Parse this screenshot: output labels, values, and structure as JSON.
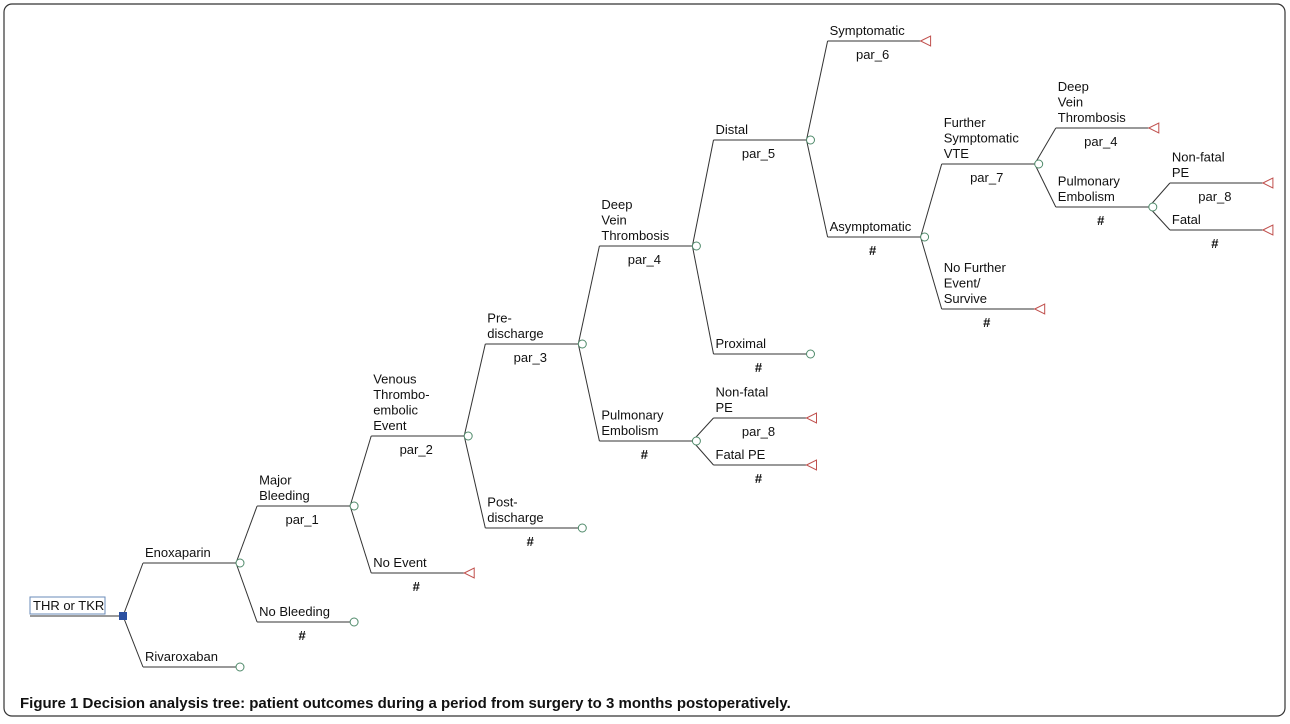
{
  "tree": {
    "label": "THR or TKR",
    "branches": [
      {
        "label": [
          "Enoxaparin"
        ],
        "node": "chance",
        "branches": [
          {
            "label": [
              "Major",
              "Bleeding"
            ],
            "probability": "par_1",
            "node": "chance",
            "branches": [
              {
                "label": [
                  "Venous",
                  "Thrombo-",
                  "embolic",
                  "Event"
                ],
                "probability": "par_2",
                "node": "chance",
                "branches": [
                  {
                    "label": [
                      "Pre-",
                      "discharge"
                    ],
                    "probability": "par_3",
                    "node": "chance",
                    "branches": [
                      {
                        "label": [
                          "Deep",
                          "Vein",
                          "Thrombosis"
                        ],
                        "probability": "par_4",
                        "node": "chance",
                        "branches": [
                          {
                            "label": [
                              "Distal"
                            ],
                            "probability": "par_5",
                            "node": "chance",
                            "branches": [
                              {
                                "label": [
                                  "Symptomatic"
                                ],
                                "probability": "par_6",
                                "node": "terminal"
                              },
                              {
                                "label": [
                                  "Asymptomatic"
                                ],
                                "probability": "#",
                                "node": "chance",
                                "branches": [
                                  {
                                    "label": [
                                      "Further",
                                      "Symptomatic",
                                      "VTE"
                                    ],
                                    "probability": "par_7",
                                    "node": "chance",
                                    "branches": [
                                      {
                                        "label": [
                                          "Deep",
                                          "Vein",
                                          "Thrombosis"
                                        ],
                                        "probability": "par_4",
                                        "node": "terminal"
                                      },
                                      {
                                        "label": [
                                          "Pulmonary",
                                          "Embolism"
                                        ],
                                        "probability": "#",
                                        "node": "chance",
                                        "branches": [
                                          {
                                            "label": [
                                              "Non-fatal",
                                              "PE"
                                            ],
                                            "probability": "par_8",
                                            "node": "terminal"
                                          },
                                          {
                                            "label": [
                                              "Fatal"
                                            ],
                                            "probability": "#",
                                            "node": "terminal"
                                          }
                                        ]
                                      }
                                    ]
                                  },
                                  {
                                    "label": [
                                      "No Further",
                                      "Event/",
                                      "Survive"
                                    ],
                                    "probability": "#",
                                    "node": "terminal"
                                  }
                                ]
                              }
                            ]
                          },
                          {
                            "label": [
                              "Proximal"
                            ],
                            "probability": "#",
                            "node": "chance"
                          }
                        ]
                      },
                      {
                        "label": [
                          "Pulmonary",
                          "Embolism"
                        ],
                        "probability": "#",
                        "node": "chance",
                        "branches": [
                          {
                            "label": [
                              "Non-fatal",
                              "PE"
                            ],
                            "probability": "par_8",
                            "node": "terminal"
                          },
                          {
                            "label": [
                              "Fatal PE"
                            ],
                            "probability": "#",
                            "node": "terminal"
                          }
                        ]
                      }
                    ]
                  },
                  {
                    "label": [
                      "Post-",
                      "discharge"
                    ],
                    "probability": "#",
                    "node": "chance"
                  }
                ]
              },
              {
                "label": [
                  "No Event"
                ],
                "probability": "#",
                "node": "terminal"
              }
            ]
          },
          {
            "label": [
              "No Bleeding"
            ],
            "probability": "#",
            "node": "chance"
          }
        ]
      },
      {
        "label": [
          "Rivaroxaban"
        ],
        "node": "chance"
      }
    ]
  },
  "caption": {
    "figure": "Figure 1",
    "text": "Decision analysis tree: patient outcomes during a period from surgery to 3 months postoperatively."
  }
}
